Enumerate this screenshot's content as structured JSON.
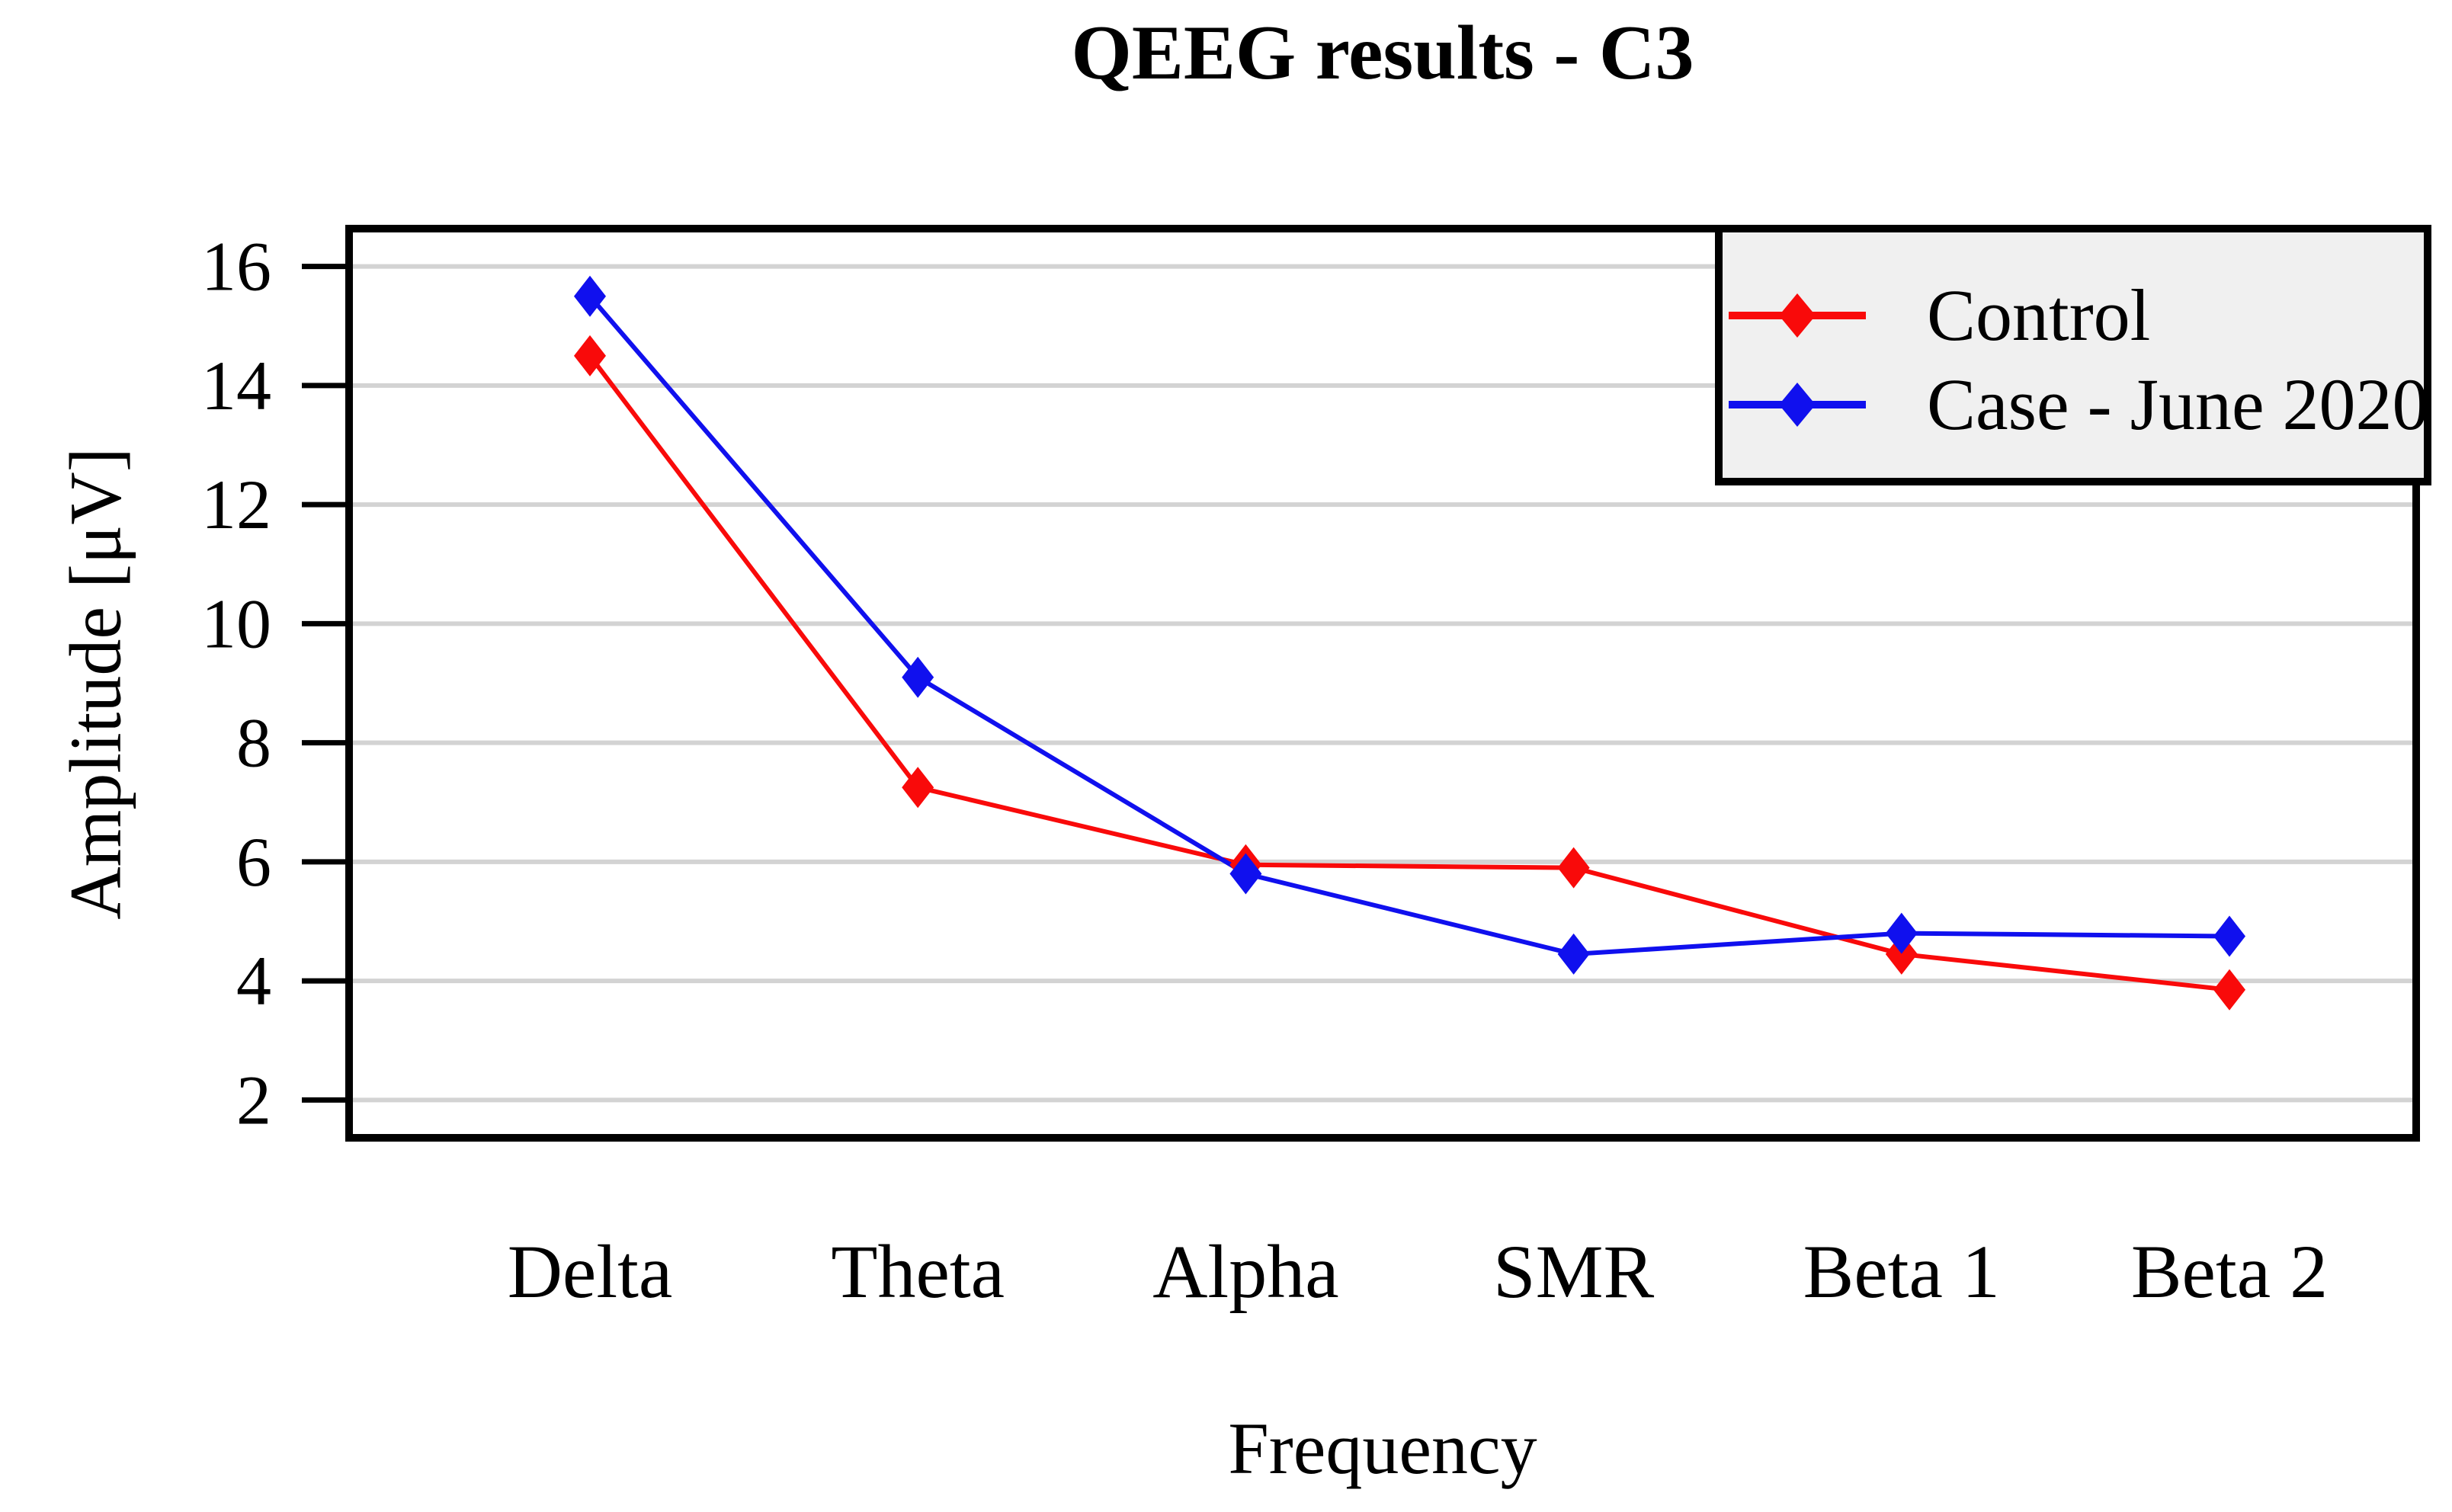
{
  "chart_data": {
    "type": "line",
    "title": "QEEG results - C3",
    "xlabel": "Frequency",
    "ylabel": "Amplitude [μV]",
    "categories": [
      "Delta",
      "Theta",
      "Alpha",
      "SMR",
      "Beta 1",
      "Beta 2"
    ],
    "series": [
      {
        "name": "Control",
        "color": "#f90a0a",
        "values": [
          14.5,
          7.25,
          5.95,
          5.9,
          4.45,
          3.85
        ]
      },
      {
        "name": "Case - June 2020",
        "color": "#1010ee",
        "values": [
          15.5,
          9.1,
          5.8,
          4.45,
          4.8,
          4.75
        ]
      }
    ],
    "yticks": [
      2,
      4,
      6,
      8,
      10,
      12,
      14,
      16
    ],
    "ylim": [
      1.3,
      16.7
    ],
    "grid": "horizontal-only",
    "grid_color": "#d3d3d3",
    "marker": "filled-diamond",
    "line_style": "solid",
    "legend": {
      "position": "top-right",
      "background": "#f0f0f0",
      "border_color": "#000000"
    },
    "text_color": "#000000",
    "plot_border_color": "#000000"
  }
}
